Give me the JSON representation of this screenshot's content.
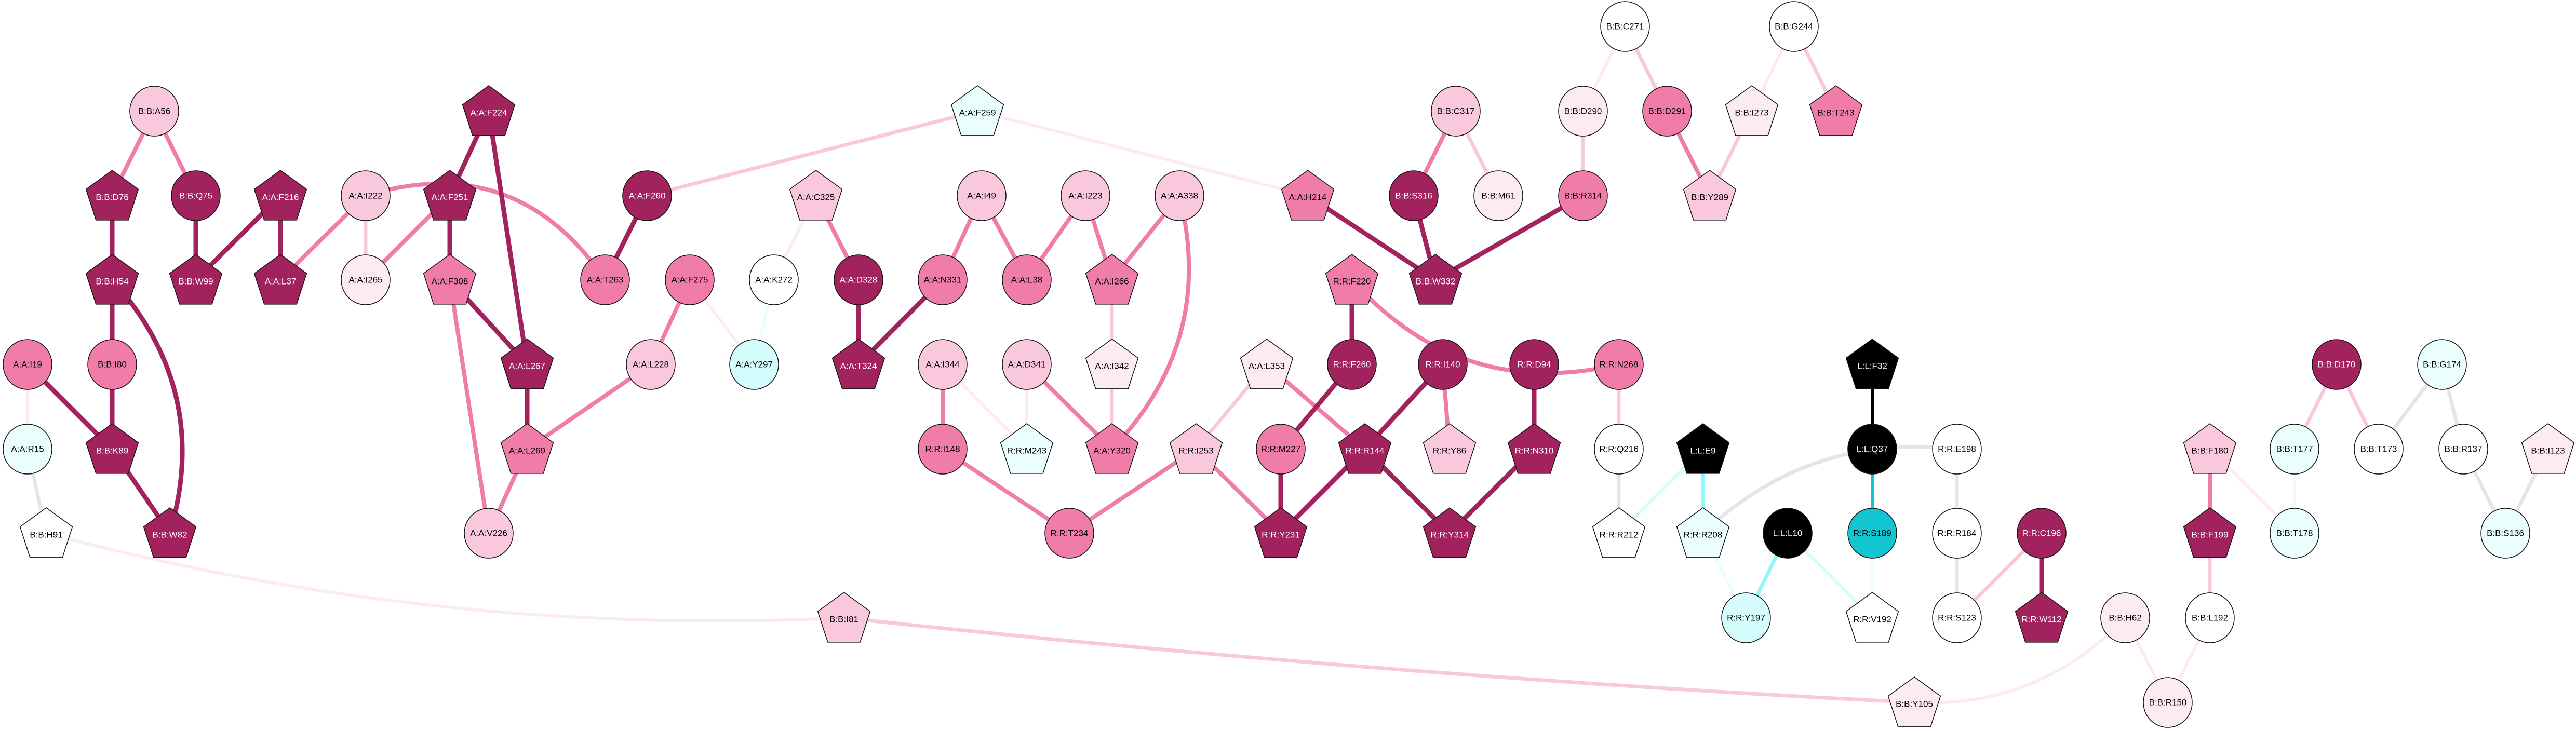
{
  "palette": {
    "dark": "#A2225E",
    "mid": "#F07CAA",
    "light": "#F9C8DC",
    "vlight": "#FCEBF2",
    "white": "#FFFFFF",
    "lcyan": "#EAFEFD",
    "cyan": "#D4FCFC",
    "brightcyan": "#8FF8F8",
    "teal": "#12C6D1",
    "black": "#000000",
    "gray": "#E5E5E5"
  },
  "nodes": [
    {
      "label": "B:B:A56",
      "shape": "circle",
      "fill": "light"
    },
    {
      "label": "B:B:D76",
      "shape": "pentagon",
      "fill": "dark"
    },
    {
      "label": "B:B:Q75",
      "shape": "circle",
      "fill": "dark"
    },
    {
      "label": "A:A:F216",
      "shape": "pentagon",
      "fill": "dark"
    },
    {
      "label": "A:A:I222",
      "shape": "circle",
      "fill": "light"
    },
    {
      "label": "A:A:F251",
      "shape": "pentagon",
      "fill": "dark"
    },
    {
      "label": "A:A:F224",
      "shape": "pentagon",
      "fill": "dark"
    },
    {
      "label": "B:B:H54",
      "shape": "pentagon",
      "fill": "dark"
    },
    {
      "label": "B:B:W99",
      "shape": "pentagon",
      "fill": "dark"
    },
    {
      "label": "A:A:L37",
      "shape": "pentagon",
      "fill": "dark"
    },
    {
      "label": "A:A:I265",
      "shape": "circle",
      "fill": "vlight"
    },
    {
      "label": "A:A:F308",
      "shape": "pentagon",
      "fill": "mid"
    },
    {
      "label": "A:A:I19",
      "shape": "circle",
      "fill": "mid"
    },
    {
      "label": "B:B:I80",
      "shape": "circle",
      "fill": "mid"
    },
    {
      "label": "A:A:L267",
      "shape": "pentagon",
      "fill": "dark"
    },
    {
      "label": "A:A:R15",
      "shape": "circle",
      "fill": "lcyan"
    },
    {
      "label": "B:B:K89",
      "shape": "pentagon",
      "fill": "dark"
    },
    {
      "label": "A:A:L269",
      "shape": "pentagon",
      "fill": "mid"
    },
    {
      "label": "B:B:H91",
      "shape": "pentagon",
      "fill": "white"
    },
    {
      "label": "B:B:W82",
      "shape": "pentagon",
      "fill": "dark"
    },
    {
      "label": "A:A:V226",
      "shape": "circle",
      "fill": "light"
    },
    {
      "label": "A:A:F259",
      "shape": "pentagon",
      "fill": "lcyan"
    },
    {
      "label": "A:A:F260",
      "shape": "circle",
      "fill": "dark"
    },
    {
      "label": "A:A:C325",
      "shape": "pentagon",
      "fill": "light"
    },
    {
      "label": "A:A:I49",
      "shape": "circle",
      "fill": "light"
    },
    {
      "label": "A:A:I223",
      "shape": "circle",
      "fill": "light"
    },
    {
      "label": "A:A:A338",
      "shape": "circle",
      "fill": "light"
    },
    {
      "label": "A:A:T263",
      "shape": "circle",
      "fill": "mid"
    },
    {
      "label": "A:A:F275",
      "shape": "circle",
      "fill": "mid"
    },
    {
      "label": "A:A:K272",
      "shape": "circle",
      "fill": "white"
    },
    {
      "label": "A:A:D328",
      "shape": "circle",
      "fill": "dark"
    },
    {
      "label": "A:A:N331",
      "shape": "circle",
      "fill": "mid"
    },
    {
      "label": "A:A:L38",
      "shape": "circle",
      "fill": "mid"
    },
    {
      "label": "A:A:I266",
      "shape": "pentagon",
      "fill": "mid"
    },
    {
      "label": "A:A:L228",
      "shape": "circle",
      "fill": "light"
    },
    {
      "label": "A:A:Y297",
      "shape": "circle",
      "fill": "cyan"
    },
    {
      "label": "A:A:T324",
      "shape": "pentagon",
      "fill": "dark"
    },
    {
      "label": "A:A:I344",
      "shape": "circle",
      "fill": "light"
    },
    {
      "label": "A:A:D341",
      "shape": "circle",
      "fill": "light"
    },
    {
      "label": "A:A:I342",
      "shape": "pentagon",
      "fill": "vlight"
    },
    {
      "label": "R:R:I148",
      "shape": "circle",
      "fill": "mid"
    },
    {
      "label": "R:R:M243",
      "shape": "pentagon",
      "fill": "lcyan"
    },
    {
      "label": "A:A:Y320",
      "shape": "pentagon",
      "fill": "mid"
    },
    {
      "label": "R:R:I253",
      "shape": "pentagon",
      "fill": "light"
    },
    {
      "label": "R:R:T234",
      "shape": "circle",
      "fill": "mid"
    },
    {
      "label": "B:B:I81",
      "shape": "pentagon",
      "fill": "light"
    },
    {
      "label": "B:B:C271",
      "shape": "circle",
      "fill": "white"
    },
    {
      "label": "B:B:G244",
      "shape": "circle",
      "fill": "white"
    },
    {
      "label": "B:B:C317",
      "shape": "circle",
      "fill": "light"
    },
    {
      "label": "B:B:D290",
      "shape": "circle",
      "fill": "vlight"
    },
    {
      "label": "B:B:D291",
      "shape": "circle",
      "fill": "mid"
    },
    {
      "label": "B:B:I273",
      "shape": "pentagon",
      "fill": "vlight"
    },
    {
      "label": "B:B:T243",
      "shape": "pentagon",
      "fill": "mid"
    },
    {
      "label": "A:A:H214",
      "shape": "pentagon",
      "fill": "mid"
    },
    {
      "label": "B:B:S316",
      "shape": "circle",
      "fill": "dark"
    },
    {
      "label": "B:B:M61",
      "shape": "circle",
      "fill": "vlight"
    },
    {
      "label": "B:B:R314",
      "shape": "circle",
      "fill": "mid"
    },
    {
      "label": "B:B:Y289",
      "shape": "pentagon",
      "fill": "light"
    },
    {
      "label": "R:R:F220",
      "shape": "pentagon",
      "fill": "mid"
    },
    {
      "label": "B:B:W332",
      "shape": "pentagon",
      "fill": "dark"
    },
    {
      "label": "A:A:L353",
      "shape": "pentagon",
      "fill": "vlight"
    },
    {
      "label": "R:R:F260",
      "shape": "circle",
      "fill": "dark"
    },
    {
      "label": "R:R:I140",
      "shape": "circle",
      "fill": "dark"
    },
    {
      "label": "R:R:D94",
      "shape": "circle",
      "fill": "dark"
    },
    {
      "label": "R:R:N268",
      "shape": "circle",
      "fill": "mid"
    },
    {
      "label": "R:R:M227",
      "shape": "circle",
      "fill": "mid"
    },
    {
      "label": "R:R:R144",
      "shape": "pentagon",
      "fill": "dark"
    },
    {
      "label": "R:R:Y86",
      "shape": "pentagon",
      "fill": "light"
    },
    {
      "label": "R:R:N310",
      "shape": "pentagon",
      "fill": "dark"
    },
    {
      "label": "R:R:Q216",
      "shape": "circle",
      "fill": "white"
    },
    {
      "label": "L:L:E9",
      "shape": "pentagon",
      "fill": "black"
    },
    {
      "label": "R:R:Y231",
      "shape": "pentagon",
      "fill": "dark"
    },
    {
      "label": "R:R:Y314",
      "shape": "pentagon",
      "fill": "dark"
    },
    {
      "label": "R:R:R212",
      "shape": "pentagon",
      "fill": "white"
    },
    {
      "label": "R:R:R208",
      "shape": "pentagon",
      "fill": "lcyan"
    },
    {
      "label": "L:L:L10",
      "shape": "circle",
      "fill": "black"
    },
    {
      "label": "L:L:F32",
      "shape": "pentagon",
      "fill": "black"
    },
    {
      "label": "L:L:Q37",
      "shape": "circle",
      "fill": "black"
    },
    {
      "label": "R:R:E198",
      "shape": "circle",
      "fill": "white"
    },
    {
      "label": "R:R:S189",
      "shape": "circle",
      "fill": "teal"
    },
    {
      "label": "R:R:R184",
      "shape": "circle",
      "fill": "white"
    },
    {
      "label": "R:R:C196",
      "shape": "circle",
      "fill": "dark"
    },
    {
      "label": "R:R:Y197",
      "shape": "circle",
      "fill": "cyan"
    },
    {
      "label": "R:R:V192",
      "shape": "pentagon",
      "fill": "white"
    },
    {
      "label": "R:R:S123",
      "shape": "circle",
      "fill": "white"
    },
    {
      "label": "R:R:W112",
      "shape": "pentagon",
      "fill": "dark"
    },
    {
      "label": "B:B:H62",
      "shape": "circle",
      "fill": "vlight"
    },
    {
      "label": "B:B:L192",
      "shape": "circle",
      "fill": "white"
    },
    {
      "label": "B:B:Y105",
      "shape": "pentagon",
      "fill": "vlight"
    },
    {
      "label": "B:B:R150",
      "shape": "circle",
      "fill": "vlight"
    },
    {
      "label": "B:B:F180",
      "shape": "pentagon",
      "fill": "light"
    },
    {
      "label": "B:B:F199",
      "shape": "pentagon",
      "fill": "dark"
    },
    {
      "label": "B:B:T177",
      "shape": "circle",
      "fill": "lcyan"
    },
    {
      "label": "B:B:T178",
      "shape": "circle",
      "fill": "lcyan"
    },
    {
      "label": "B:B:D170",
      "shape": "circle",
      "fill": "dark"
    },
    {
      "label": "B:B:T173",
      "shape": "circle",
      "fill": "white"
    },
    {
      "label": "B:B:G174",
      "shape": "circle",
      "fill": "lcyan"
    },
    {
      "label": "B:B:R137",
      "shape": "circle",
      "fill": "white"
    },
    {
      "label": "B:B:S136",
      "shape": "circle",
      "fill": "lcyan"
    },
    {
      "label": "B:B:I123",
      "shape": "pentagon",
      "fill": "vlight"
    }
  ],
  "edges": [
    {
      "source": "B:B:A56",
      "target": "B:B:D76",
      "color": "mid"
    },
    {
      "source": "B:B:A56",
      "target": "B:B:Q75",
      "color": "mid"
    },
    {
      "source": "B:B:D76",
      "target": "B:B:H54",
      "color": "dark"
    },
    {
      "source": "B:B:Q75",
      "target": "B:B:W99",
      "color": "dark"
    },
    {
      "source": "A:A:F216",
      "target": "B:B:W99",
      "color": "dark"
    },
    {
      "source": "A:A:F216",
      "target": "A:A:L37",
      "color": "dark"
    },
    {
      "source": "A:A:I222",
      "target": "A:A:L37",
      "color": "mid"
    },
    {
      "source": "A:A:I222",
      "target": "A:A:I265",
      "color": "light"
    },
    {
      "source": "A:A:I222",
      "target": "A:A:T263",
      "color": "mid"
    },
    {
      "source": "A:A:F251",
      "target": "A:A:I265",
      "color": "mid"
    },
    {
      "source": "A:A:F224",
      "target": "A:A:F251",
      "color": "dark"
    },
    {
      "source": "A:A:F224",
      "target": "A:A:L267",
      "color": "dark"
    },
    {
      "source": "A:A:F251",
      "target": "A:A:F308",
      "color": "dark"
    },
    {
      "source": "A:A:F308",
      "target": "A:A:L267",
      "color": "dark"
    },
    {
      "source": "A:A:F308",
      "target": "A:A:V226",
      "color": "mid"
    },
    {
      "source": "A:A:L267",
      "target": "A:A:L269",
      "color": "dark"
    },
    {
      "source": "A:A:L269",
      "target": "A:A:V226",
      "color": "mid"
    },
    {
      "source": "A:A:L269",
      "target": "A:A:L228",
      "color": "mid"
    },
    {
      "source": "B:B:H54",
      "target": "B:B:I80",
      "color": "dark"
    },
    {
      "source": "B:B:H54",
      "target": "B:B:W82",
      "color": "dark"
    },
    {
      "source": "B:B:I80",
      "target": "B:B:K89",
      "color": "dark"
    },
    {
      "source": "A:A:I19",
      "target": "B:B:K89",
      "color": "dark"
    },
    {
      "source": "A:A:I19",
      "target": "A:A:R15",
      "color": "vlight"
    },
    {
      "source": "B:B:K89",
      "target": "B:B:W82",
      "color": "dark"
    },
    {
      "source": "A:A:R15",
      "target": "B:B:H91",
      "color": "gray"
    },
    {
      "source": "B:B:H91",
      "target": "B:B:I81",
      "color": "vlight"
    },
    {
      "source": "B:B:I81",
      "target": "B:B:Y105",
      "color": "light"
    },
    {
      "source": "A:A:F259",
      "target": "A:A:F260",
      "color": "light"
    },
    {
      "source": "A:A:F259",
      "target": "A:A:H214",
      "color": "vlight"
    },
    {
      "source": "A:A:F260",
      "target": "A:A:T263",
      "color": "dark"
    },
    {
      "source": "A:A:C325",
      "target": "A:A:K272",
      "color": "vlight"
    },
    {
      "source": "A:A:C325",
      "target": "A:A:D328",
      "color": "mid"
    },
    {
      "source": "A:A:F275",
      "target": "A:A:L228",
      "color": "mid"
    },
    {
      "source": "A:A:F275",
      "target": "A:A:Y297",
      "color": "vlight"
    },
    {
      "source": "A:A:K272",
      "target": "A:A:Y297",
      "color": "lcyan"
    },
    {
      "source": "A:A:D328",
      "target": "A:A:T324",
      "color": "dark"
    },
    {
      "source": "A:A:N331",
      "target": "A:A:T324",
      "color": "dark"
    },
    {
      "source": "A:A:I49",
      "target": "A:A:N331",
      "color": "mid"
    },
    {
      "source": "A:A:I49",
      "target": "A:A:L38",
      "color": "mid"
    },
    {
      "source": "A:A:I223",
      "target": "A:A:L38",
      "color": "mid"
    },
    {
      "source": "A:A:I223",
      "target": "A:A:I266",
      "color": "mid"
    },
    {
      "source": "A:A:A338",
      "target": "A:A:I266",
      "color": "mid"
    },
    {
      "source": "A:A:A338",
      "target": "A:A:Y320",
      "color": "mid"
    },
    {
      "source": "A:A:I266",
      "target": "A:A:I342",
      "color": "light"
    },
    {
      "source": "A:A:I342",
      "target": "A:A:Y320",
      "color": "light"
    },
    {
      "source": "A:A:D341",
      "target": "R:R:M243",
      "color": "vlight"
    },
    {
      "source": "A:A:D341",
      "target": "A:A:Y320",
      "color": "mid"
    },
    {
      "source": "A:A:I344",
      "target": "R:R:I148",
      "color": "mid"
    },
    {
      "source": "A:A:I344",
      "target": "R:R:M243",
      "color": "vlight"
    },
    {
      "source": "R:R:I148",
      "target": "R:R:T234",
      "color": "mid"
    },
    {
      "source": "R:R:I253",
      "target": "R:R:T234",
      "color": "mid"
    },
    {
      "source": "A:A:L353",
      "target": "R:R:I253",
      "color": "light"
    },
    {
      "source": "A:A:L353",
      "target": "R:R:R144",
      "color": "mid"
    },
    {
      "source": "R:R:F260",
      "target": "R:R:M227",
      "color": "dark"
    },
    {
      "source": "R:R:I140",
      "target": "R:R:R144",
      "color": "dark"
    },
    {
      "source": "R:R:I140",
      "target": "R:R:Y86",
      "color": "mid"
    },
    {
      "source": "R:R:D94",
      "target": "R:R:N310",
      "color": "dark"
    },
    {
      "source": "R:R:M227",
      "target": "R:R:Y231",
      "color": "dark"
    },
    {
      "source": "R:R:R144",
      "target": "R:R:Y231",
      "color": "dark"
    },
    {
      "source": "R:R:I253",
      "target": "R:R:Y231",
      "color": "mid"
    },
    {
      "source": "R:R:R144",
      "target": "R:R:Y314",
      "color": "dark"
    },
    {
      "source": "R:R:N310",
      "target": "R:R:Y314",
      "color": "dark"
    },
    {
      "source": "R:R:F220",
      "target": "R:R:F260",
      "color": "dark"
    },
    {
      "source": "R:R:F220",
      "target": "R:R:N268",
      "color": "mid"
    },
    {
      "source": "R:R:N268",
      "target": "R:R:Q216",
      "color": "light"
    },
    {
      "source": "R:R:Q216",
      "target": "R:R:R212",
      "color": "gray"
    },
    {
      "source": "L:L:E9",
      "target": "R:R:R212",
      "color": "cyan"
    },
    {
      "source": "L:L:E9",
      "target": "R:R:R208",
      "color": "brightcyan"
    },
    {
      "source": "R:R:R208",
      "target": "R:R:E198",
      "color": "gray"
    },
    {
      "source": "A:A:H214",
      "target": "B:B:W332",
      "color": "dark"
    },
    {
      "source": "B:B:S316",
      "target": "B:B:W332",
      "color": "dark"
    },
    {
      "source": "B:B:R314",
      "target": "B:B:W332",
      "color": "dark"
    },
    {
      "source": "B:B:C317",
      "target": "B:B:S316",
      "color": "mid"
    },
    {
      "source": "B:B:C317",
      "target": "B:B:M61",
      "color": "light"
    },
    {
      "source": "B:B:D290",
      "target": "B:B:R314",
      "color": "light"
    },
    {
      "source": "B:B:C271",
      "target": "B:B:D290",
      "color": "vlight"
    },
    {
      "source": "B:B:C271",
      "target": "B:B:D291",
      "color": "light"
    },
    {
      "source": "B:B:D291",
      "target": "B:B:Y289",
      "color": "mid"
    },
    {
      "source": "B:B:I273",
      "target": "B:B:Y289",
      "color": "light"
    },
    {
      "source": "B:B:G244",
      "target": "B:B:I273",
      "color": "vlight"
    },
    {
      "source": "B:B:G244",
      "target": "B:B:T243",
      "color": "light"
    },
    {
      "source": "L:L:F32",
      "target": "L:L:Q37",
      "color": "black"
    },
    {
      "source": "L:L:Q37",
      "target": "R:R:S189",
      "color": "teal"
    },
    {
      "source": "R:R:S189",
      "target": "R:R:V192",
      "color": "lcyan"
    },
    {
      "source": "L:L:L10",
      "target": "R:R:Y197",
      "color": "brightcyan"
    },
    {
      "source": "L:L:L10",
      "target": "R:R:V192",
      "color": "cyan"
    },
    {
      "source": "R:R:R208",
      "target": "R:R:Y197",
      "color": "lcyan"
    },
    {
      "source": "R:R:E198",
      "target": "R:R:R184",
      "color": "gray"
    },
    {
      "source": "R:R:R184",
      "target": "R:R:S123",
      "color": "gray"
    },
    {
      "source": "R:R:C196",
      "target": "R:R:S123",
      "color": "light"
    },
    {
      "source": "R:R:C196",
      "target": "R:R:W112",
      "color": "dark"
    },
    {
      "source": "B:B:F180",
      "target": "B:B:F199",
      "color": "mid"
    },
    {
      "source": "B:B:F180",
      "target": "B:B:T178",
      "color": "vlight"
    },
    {
      "source": "B:B:T177",
      "target": "B:B:T178",
      "color": "lcyan"
    },
    {
      "source": "B:B:D170",
      "target": "B:B:T177",
      "color": "light"
    },
    {
      "source": "B:B:D170",
      "target": "B:B:T173",
      "color": "light"
    },
    {
      "source": "B:B:G174",
      "target": "B:B:T173",
      "color": "gray"
    },
    {
      "source": "B:B:G174",
      "target": "B:B:R137",
      "color": "gray"
    },
    {
      "source": "B:B:R137",
      "target": "B:B:S136",
      "color": "gray"
    },
    {
      "source": "B:B:I123",
      "target": "B:B:S136",
      "color": "gray"
    },
    {
      "source": "B:B:F199",
      "target": "B:B:L192",
      "color": "light"
    },
    {
      "source": "B:B:L192",
      "target": "B:B:R150",
      "color": "vlight"
    },
    {
      "source": "B:B:H62",
      "target": "B:B:R150",
      "color": "vlight"
    },
    {
      "source": "B:B:H62",
      "target": "B:B:Y105",
      "color": "vlight"
    }
  ]
}
